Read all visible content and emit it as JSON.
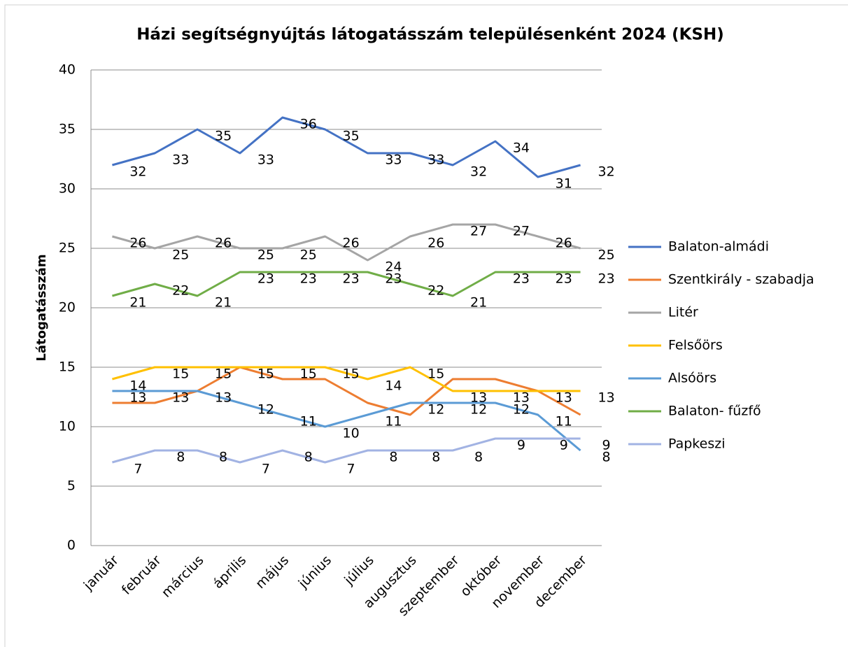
{
  "chart_data": {
    "type": "line",
    "title": "Házi segítségnyújtás látogatásszám településenként 2024 (KSH)",
    "y_label": "Látogatásszám",
    "categories": [
      "január",
      "február",
      "március",
      "április",
      "május",
      "június",
      "július",
      "augusztus",
      "szeptember",
      "október",
      "november",
      "december"
    ],
    "series": [
      {
        "name": "Balaton-almádi",
        "color": "#4472c4",
        "data_labels": true,
        "values": [
          32,
          33,
          35,
          33,
          36,
          35,
          33,
          33,
          32,
          34,
          31,
          32
        ]
      },
      {
        "name": "Szentkirály - szabadja",
        "color": "#ed7d31",
        "data_labels": false,
        "values": [
          12,
          12,
          13,
          15,
          14,
          14,
          12,
          11,
          14,
          14,
          13,
          11
        ]
      },
      {
        "name": "Litér",
        "color": "#a5a5a5",
        "data_labels": true,
        "values": [
          26,
          25,
          26,
          25,
          25,
          26,
          24,
          26,
          27,
          27,
          26,
          25
        ]
      },
      {
        "name": "Felsőörs",
        "color": "#ffc000",
        "data_labels": true,
        "values": [
          14,
          15,
          15,
          15,
          15,
          15,
          14,
          15,
          13,
          13,
          13,
          13
        ]
      },
      {
        "name": "Alsóörs",
        "color": "#5b9bd5",
        "data_labels": true,
        "values": [
          13,
          13,
          13,
          12,
          11,
          10,
          11,
          12,
          12,
          12,
          11,
          8
        ]
      },
      {
        "name": "Balaton-  fűzfő",
        "color": "#70ad47",
        "data_labels": true,
        "values": [
          21,
          22,
          21,
          23,
          23,
          23,
          23,
          22,
          21,
          23,
          23,
          23
        ]
      },
      {
        "name": "Papkeszi",
        "color": "#a2b3e3",
        "data_labels": true,
        "values": [
          7,
          8,
          8,
          7,
          8,
          7,
          8,
          8,
          8,
          9,
          9,
          9
        ]
      }
    ],
    "ylim": [
      0,
      40
    ],
    "yticks": [
      0,
      5,
      10,
      15,
      20,
      25,
      30,
      35,
      40
    ],
    "grid": true,
    "legend": "right"
  }
}
